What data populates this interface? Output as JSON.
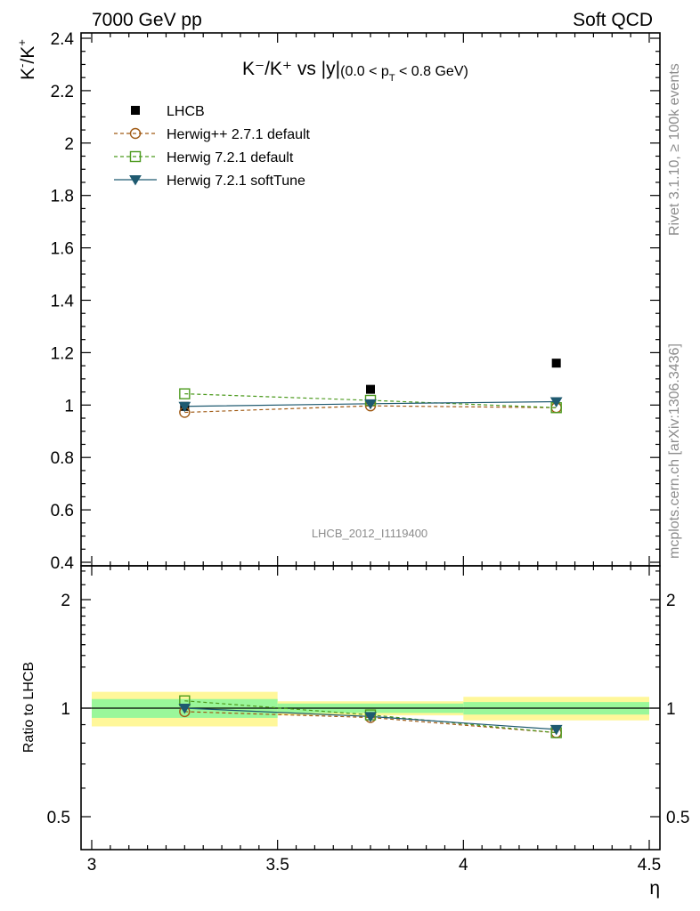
{
  "header": {
    "left": "7000 GeV pp",
    "right": "Soft QCD"
  },
  "side": {
    "rivet": "Rivet 3.1.10, ≥ 100k events",
    "mcplots": "mcplots.cern.ch [arXiv:1306.3436]"
  },
  "analysis_id": "LHCB_2012_I1119400",
  "chart_data": {
    "type": "scatter",
    "title": {
      "main": "K⁻/K⁺ vs |y|",
      "sub": "(0.0 < p",
      "sub_index": "T",
      "sub_end": " < 0.8 GeV)"
    },
    "ylabel": {
      "k1": "K",
      "s1": "-",
      "mid": "/K",
      "s2": "+"
    },
    "xlabel": "η",
    "ratio_ylabel": "Ratio to LHCB",
    "xlim": [
      3.0,
      4.5
    ],
    "ylim": [
      0.4,
      2.45
    ],
    "ratio_ylim": [
      0.4,
      2.45
    ],
    "x_ticks": [
      {
        "v": 3.0,
        "label": "3"
      },
      {
        "v": 3.5,
        "label": "3.5"
      },
      {
        "v": 4.0,
        "label": "4"
      },
      {
        "v": 4.5,
        "label": "4.5"
      }
    ],
    "y_ticks": [
      {
        "v": 0.4,
        "label": "0.4"
      },
      {
        "v": 0.6,
        "label": "0.6"
      },
      {
        "v": 0.8,
        "label": "0.8"
      },
      {
        "v": 1.0,
        "label": "1"
      },
      {
        "v": 1.2,
        "label": "1.2"
      },
      {
        "v": 1.4,
        "label": "1.4"
      },
      {
        "v": 1.6,
        "label": "1.6"
      },
      {
        "v": 1.8,
        "label": "1.8"
      },
      {
        "v": 2.0,
        "label": "2"
      },
      {
        "v": 2.2,
        "label": "2.2"
      },
      {
        "v": 2.4,
        "label": "2.4"
      }
    ],
    "ratio_ticks": [
      {
        "v": 0.5,
        "label": "0.5"
      },
      {
        "v": 1.0,
        "label": "1"
      },
      {
        "v": 2.0,
        "label": "2"
      }
    ],
    "bins": [
      {
        "lo": 3.0,
        "hi": 3.5,
        "x": 3.25
      },
      {
        "lo": 3.5,
        "hi": 4.0,
        "x": 3.75
      },
      {
        "lo": 4.0,
        "hi": 4.5,
        "x": 4.25
      }
    ],
    "data": {
      "name": "LHCB",
      "y": [
        0.995,
        1.06,
        1.16
      ],
      "band_stat": [
        0.06,
        0.03,
        0.04
      ],
      "band_tot": [
        0.11,
        0.045,
        0.075
      ]
    },
    "series": [
      {
        "name": "Herwig++ 2.7.1 default",
        "color": "#a05a14",
        "marker": "open-circle",
        "dash": "4,3",
        "y": [
          0.972,
          0.997,
          0.99
        ],
        "ratio": [
          0.978,
          0.942,
          0.855
        ]
      },
      {
        "name": "Herwig 7.2.1 default",
        "color": "#4c9a1e",
        "marker": "open-square",
        "dash": "4,3",
        "y": [
          1.043,
          1.018,
          0.99
        ],
        "ratio": [
          1.048,
          0.958,
          0.855
        ]
      },
      {
        "name": "Herwig 7.2.1 softTune",
        "color": "#1f5a70",
        "marker": "down-triangle",
        "dash": "",
        "y": [
          0.995,
          1.005,
          1.013
        ],
        "ratio": [
          1.0,
          0.948,
          0.873
        ]
      }
    ],
    "legend_position": "top-left"
  }
}
